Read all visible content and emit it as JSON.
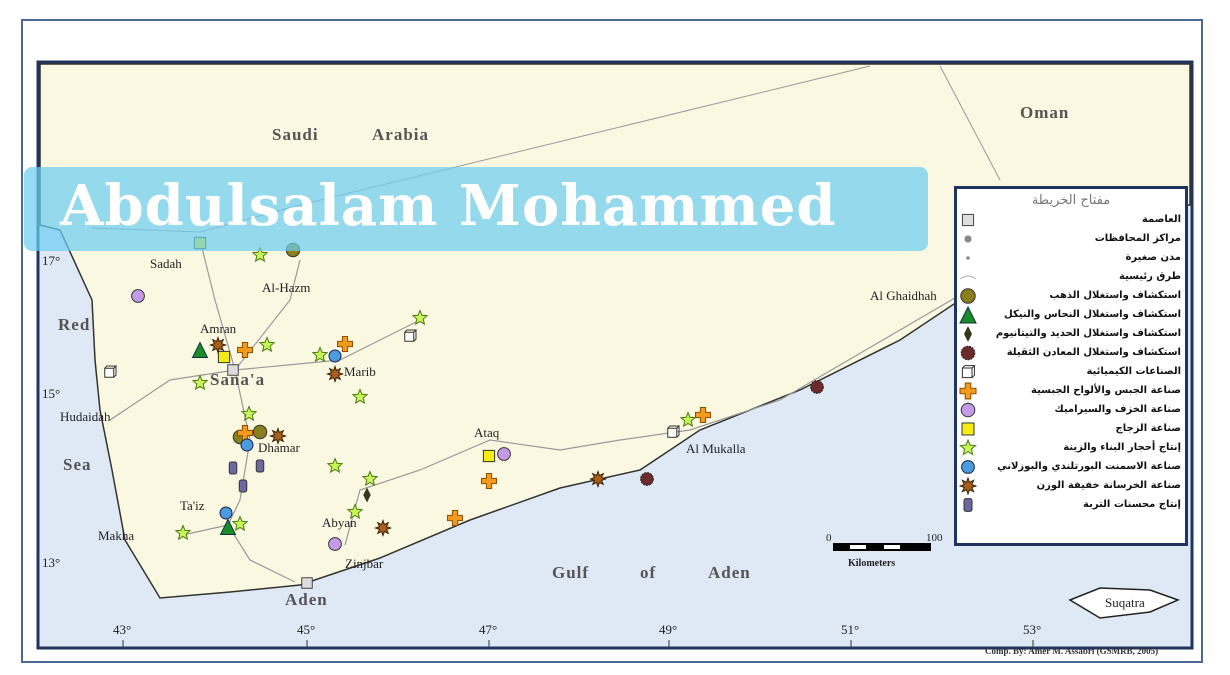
{
  "map": {
    "country_labels": [
      "Saudi",
      "Arabia",
      "Oman"
    ],
    "sea_labels": [
      "Red",
      "Sea",
      "Gulf",
      "of",
      "Aden"
    ],
    "cities": [
      "Sadah",
      "Al-Hazm",
      "Amran",
      "Sana'a",
      "Marib",
      "Hudaidah",
      "Dhamar",
      "Ataq",
      "Al Mukalla",
      "Al Ghaidhah",
      "Ta'iz",
      "Abyan",
      "Makha",
      "Zinjbar",
      "Aden",
      "Suqatra"
    ],
    "lon_ticks": [
      "43°",
      "45°",
      "47°",
      "49°",
      "51°",
      "53°"
    ],
    "lat_ticks": [
      "17°",
      "15°",
      "13°"
    ],
    "scale": {
      "start": "0",
      "end": "100",
      "unit": "Kilometers"
    },
    "credit": "Comp. By: Amer M. Assabri (GSMRB, 2005)",
    "colors": {
      "sea": "#dfe9f6",
      "land": "#fbf8e2",
      "frame": "#1f3560"
    }
  },
  "legend": {
    "title": "مفتاح الخريطة",
    "items": [
      {
        "icon": "capital",
        "label": "العاصمة"
      },
      {
        "icon": "governorate-center",
        "label": "مراكز المحافظات"
      },
      {
        "icon": "small-town",
        "label": "مدن صغيرة"
      },
      {
        "icon": "main-road",
        "label": "طرق رئيسية"
      },
      {
        "icon": "gold",
        "label": "استكشاف واستغلال الذهب"
      },
      {
        "icon": "copper-nickel",
        "label": "استكشاف واستغلال النحاس والنيكل"
      },
      {
        "icon": "iron-titanium",
        "label": "استكشاف واستغلال الحديد والتيتانيوم"
      },
      {
        "icon": "heavy-minerals",
        "label": "استكشاف واستغلال المعادن الثقيلة"
      },
      {
        "icon": "chemical",
        "label": "الصناعات الكيميائية"
      },
      {
        "icon": "gypsum",
        "label": "صناعة الجبس والألواح الجبسية"
      },
      {
        "icon": "ceramics",
        "label": "صناعة الخزف والسيراميك"
      },
      {
        "icon": "glass",
        "label": "صناعة الزجاج"
      },
      {
        "icon": "building-stone",
        "label": "إنتاج أحجار البناء والزينة"
      },
      {
        "icon": "cement",
        "label": "صناعة الاسمنت البورتلندي والبوزلاني"
      },
      {
        "icon": "lightweight-concrete",
        "label": "صناعة الخرسانة خفيفة الوزن"
      },
      {
        "icon": "soil-conditioner",
        "label": "إنتاج محسنات التربة"
      }
    ]
  },
  "watermark": "Abdulsalam Mohammed"
}
